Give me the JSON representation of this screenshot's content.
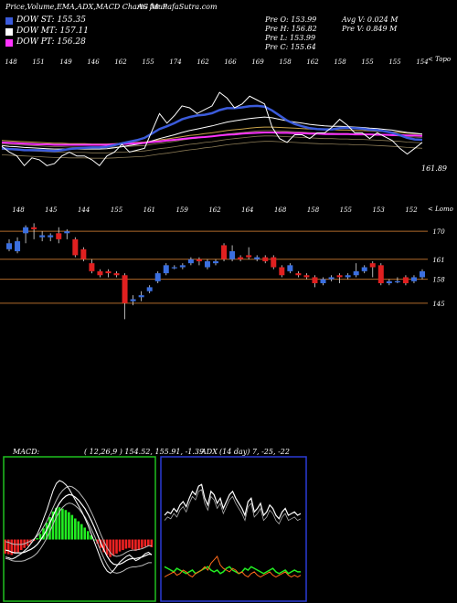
{
  "header": {
    "title": "Price,Volume,EMA,ADX,MACD Charts for P",
    "site": "AG MunafaSutra.com"
  },
  "legend": [
    {
      "label": "DOW ST: 155.35",
      "color": "#3b5bdb"
    },
    {
      "label": "DOW MT: 157.11",
      "color": "#ffffff"
    },
    {
      "label": "DOW PT: 156.28",
      "color": "#ff33ff"
    }
  ],
  "stats": {
    "prev_open": "Pre O: 153.99",
    "prev_high": "Pre H: 156.82",
    "prev_low": "Pre L: 153.99",
    "prev_close": "Pre C: 155.64",
    "avg_vol": "Avg V: 0.024 M",
    "prev_vol": "Pre V: 0.849 M"
  },
  "ema_panel": {
    "label_right": "< Topo",
    "last_price": "161.89",
    "top_labels": [
      "148",
      "151",
      "149",
      "146",
      "162",
      "155",
      "174",
      "162",
      "166",
      "169",
      "158",
      "162",
      "158",
      "155",
      "155",
      "154"
    ],
    "price_series": [
      173.0,
      171.5,
      170.5,
      168,
      170,
      169.5,
      168,
      168.5,
      170.5,
      171.5,
      170.5,
      170.5,
      169.5,
      168,
      170.5,
      171.5,
      173.5,
      171.5,
      172,
      172.5,
      177,
      181.5,
      179,
      181,
      183.5,
      183,
      181.5,
      182.5,
      183.5,
      187,
      185.5,
      183,
      184,
      186,
      185,
      184,
      178,
      175,
      174,
      176,
      176,
      175,
      176.5,
      176.5,
      178,
      180,
      178.5,
      176.5,
      176.5,
      175,
      176.5,
      175.5,
      174.5,
      172.5,
      171,
      172.5,
      174
    ],
    "ema_short": [
      172.5,
      172.3,
      172.2,
      172,
      172,
      172,
      171.9,
      171.8,
      172,
      172.3,
      172.5,
      172.6,
      172.7,
      172.7,
      172.9,
      173.3,
      173.8,
      174.2,
      174.6,
      175.2,
      176.3,
      177.5,
      178.2,
      179,
      180,
      180.6,
      181,
      181.2,
      181.6,
      182.4,
      182.9,
      182.9,
      183.1,
      183.4,
      183.5,
      183.3,
      182.3,
      181,
      179.7,
      178.8,
      178.2,
      177.7,
      177.5,
      177.4,
      177.4,
      177.7,
      177.8,
      177.7,
      177.6,
      177.3,
      177.2,
      176.9,
      176.5,
      175.9,
      175.2,
      174.8,
      174.7
    ],
    "ema_mid": [
      173.2,
      173.0,
      172.9,
      172.7,
      172.6,
      172.5,
      172.4,
      172.3,
      172.3,
      172.3,
      172.3,
      172.3,
      172.3,
      172.3,
      172.4,
      172.6,
      172.9,
      173.2,
      173.5,
      173.8,
      174.4,
      175.0,
      175.5,
      176.0,
      176.6,
      177.1,
      177.5,
      177.9,
      178.3,
      178.8,
      179.3,
      179.6,
      179.9,
      180.2,
      180.4,
      180.6,
      180.4,
      180.0,
      179.6,
      179.3,
      179.0,
      178.7,
      178.5,
      178.3,
      178.2,
      178.2,
      178.1,
      178.0,
      177.9,
      177.7,
      177.6,
      177.4,
      177.2,
      176.9,
      176.6,
      176.4,
      176.2
    ],
    "ema_long": [
      174.5,
      174.4,
      174.3,
      174.2,
      174.1,
      174.0,
      173.9,
      173.8,
      173.8,
      173.7,
      173.7,
      173.7,
      173.6,
      173.6,
      173.6,
      173.7,
      173.8,
      173.9,
      174.0,
      174.1,
      174.4,
      174.7,
      174.9,
      175.2,
      175.5,
      175.8,
      176.0,
      176.3,
      176.5,
      176.8,
      177.1,
      177.3,
      177.5,
      177.7,
      177.9,
      178.0,
      178.0,
      177.9,
      177.8,
      177.7,
      177.6,
      177.5,
      177.4,
      177.3,
      177.3,
      177.2,
      177.2,
      177.1,
      177.1,
      177.0,
      176.9,
      176.8,
      176.7,
      176.6,
      176.4,
      176.3,
      176.2
    ],
    "ema_pink": [
      174.0,
      173.9,
      173.8,
      173.7,
      173.6,
      173.5,
      173.5,
      173.4,
      173.4,
      173.4,
      173.4,
      173.4,
      173.4,
      173.4,
      173.4,
      173.5,
      173.6,
      173.7,
      173.8,
      173.9,
      174.1,
      174.3,
      174.5,
      174.7,
      174.9,
      175.1,
      175.3,
      175.4,
      175.6,
      175.8,
      176.0,
      176.1,
      176.3,
      176.4,
      176.5,
      176.6,
      176.6,
      176.5,
      176.5,
      176.4,
      176.4,
      176.3,
      176.3,
      176.2,
      176.2,
      176.2,
      176.2,
      176.1,
      176.1,
      176.1,
      176.0,
      176.0,
      175.9,
      175.9,
      175.8,
      175.8,
      175.7
    ],
    "y_range": [
      160,
      192
    ]
  },
  "candle_panel": {
    "label_right": "< Lomo",
    "top_labels": [
      "148",
      "145",
      "144",
      "155",
      "161",
      "159",
      "162",
      "164",
      "168",
      "158",
      "155",
      "153",
      "152"
    ],
    "right_labels": [
      "170",
      "161",
      "158",
      "145"
    ],
    "h_lines": [
      170,
      163,
      158,
      152
    ],
    "y_range": [
      141,
      173
    ],
    "candles": [
      {
        "o": 165.5,
        "c": 167.0,
        "h": 168.0,
        "l": 165.0
      },
      {
        "o": 165.0,
        "c": 167.5,
        "h": 168.5,
        "l": 164.5
      },
      {
        "o": 169.5,
        "c": 171.0,
        "h": 171.5,
        "l": 167.0
      },
      {
        "o": 171.0,
        "c": 170.5,
        "h": 172.0,
        "l": 168.0
      },
      {
        "o": 168.5,
        "c": 169.0,
        "h": 170.0,
        "l": 167.5
      },
      {
        "o": 168.5,
        "c": 169.0,
        "h": 169.5,
        "l": 167.5
      },
      {
        "o": 169.5,
        "c": 168.0,
        "h": 171.0,
        "l": 167.0
      },
      {
        "o": 169.5,
        "c": 170.0,
        "h": 170.5,
        "l": 168.0
      },
      {
        "o": 168.0,
        "c": 164.0,
        "h": 168.5,
        "l": 163.5
      },
      {
        "o": 165.5,
        "c": 163.0,
        "h": 166.0,
        "l": 162.5
      },
      {
        "o": 162.0,
        "c": 160.0,
        "h": 163.0,
        "l": 159.5
      },
      {
        "o": 160.0,
        "c": 159.0,
        "h": 160.5,
        "l": 158.5
      },
      {
        "o": 160.0,
        "c": 159.5,
        "h": 160.5,
        "l": 158.5
      },
      {
        "o": 159.5,
        "c": 159.0,
        "h": 160.0,
        "l": 158.5
      },
      {
        "o": 159.0,
        "c": 152.0,
        "h": 159.5,
        "l": 148.0
      },
      {
        "o": 152.5,
        "c": 153.0,
        "h": 154.0,
        "l": 151.5
      },
      {
        "o": 153.5,
        "c": 154.0,
        "h": 155.0,
        "l": 152.5
      },
      {
        "o": 155.0,
        "c": 156.0,
        "h": 156.5,
        "l": 154.5
      },
      {
        "o": 157.5,
        "c": 159.5,
        "h": 160.0,
        "l": 157.0
      },
      {
        "o": 159.5,
        "c": 161.5,
        "h": 162.0,
        "l": 159.0
      },
      {
        "o": 161.0,
        "c": 161.0,
        "h": 161.5,
        "l": 160.5
      },
      {
        "o": 161.0,
        "c": 161.5,
        "h": 162.0,
        "l": 160.5
      },
      {
        "o": 162.0,
        "c": 163.0,
        "h": 163.5,
        "l": 161.5
      },
      {
        "o": 163.0,
        "c": 162.5,
        "h": 163.5,
        "l": 161.5
      },
      {
        "o": 161.0,
        "c": 162.5,
        "h": 163.0,
        "l": 160.5
      },
      {
        "o": 162.0,
        "c": 162.5,
        "h": 163.0,
        "l": 161.5
      },
      {
        "o": 166.5,
        "c": 163.0,
        "h": 167.0,
        "l": 162.5
      },
      {
        "o": 163.0,
        "c": 165.0,
        "h": 166.5,
        "l": 162.5
      },
      {
        "o": 163.5,
        "c": 163.0,
        "h": 164.0,
        "l": 162.5
      },
      {
        "o": 164.0,
        "c": 163.5,
        "h": 166.0,
        "l": 163.0
      },
      {
        "o": 163.0,
        "c": 163.5,
        "h": 164.0,
        "l": 162.5
      },
      {
        "o": 163.5,
        "c": 162.5,
        "h": 164.0,
        "l": 162.0
      },
      {
        "o": 163.5,
        "c": 161.0,
        "h": 164.0,
        "l": 160.5
      },
      {
        "o": 161.0,
        "c": 159.0,
        "h": 161.5,
        "l": 158.5
      },
      {
        "o": 160.0,
        "c": 161.5,
        "h": 162.0,
        "l": 159.5
      },
      {
        "o": 159.5,
        "c": 159.0,
        "h": 160.0,
        "l": 158.5
      },
      {
        "o": 159.0,
        "c": 158.5,
        "h": 159.5,
        "l": 158.0
      },
      {
        "o": 158.5,
        "c": 157.0,
        "h": 159.0,
        "l": 156.0
      },
      {
        "o": 157.0,
        "c": 158.0,
        "h": 158.5,
        "l": 156.5
      },
      {
        "o": 158.0,
        "c": 158.5,
        "h": 159.0,
        "l": 157.5
      },
      {
        "o": 159.0,
        "c": 158.5,
        "h": 159.5,
        "l": 157.0
      },
      {
        "o": 158.5,
        "c": 159.0,
        "h": 159.5,
        "l": 158.0
      },
      {
        "o": 159.0,
        "c": 160.0,
        "h": 162.0,
        "l": 158.5
      },
      {
        "o": 160.0,
        "c": 161.0,
        "h": 161.5,
        "l": 159.5
      },
      {
        "o": 162.0,
        "c": 161.0,
        "h": 162.5,
        "l": 158.5
      },
      {
        "o": 161.5,
        "c": 157.0,
        "h": 162.0,
        "l": 156.5
      },
      {
        "o": 157.0,
        "c": 157.5,
        "h": 158.0,
        "l": 156.5
      },
      {
        "o": 157.5,
        "c": 157.5,
        "h": 158.5,
        "l": 157.0
      },
      {
        "o": 158.5,
        "c": 157.0,
        "h": 159.0,
        "l": 156.5
      },
      {
        "o": 157.5,
        "c": 158.5,
        "h": 159.0,
        "l": 157.0
      },
      {
        "o": 158.5,
        "c": 160.0,
        "h": 160.5,
        "l": 158.0
      }
    ]
  },
  "macd_panel": {
    "label": "MACD:",
    "values": "( 12,26,9 ) 154.52, 155.91, -1.39",
    "histogram": [
      -2.0,
      -2.1,
      -2.2,
      -2.0,
      -1.8,
      -1.5,
      -1.2,
      -0.9,
      -0.5,
      -0.2,
      0.2,
      0.8,
      1.6,
      2.4,
      3.2,
      4.0,
      4.5,
      4.6,
      4.4,
      4.2,
      3.9,
      3.5,
      3.0,
      2.6,
      2.2,
      1.7,
      1.2,
      0.6,
      0.0,
      -0.6,
      -1.2,
      -1.8,
      -2.2,
      -2.5,
      -2.3,
      -2.0,
      -1.7,
      -1.5,
      -1.3,
      -1.2,
      -1.4,
      -1.6,
      -1.5,
      -1.2,
      -1.0,
      -0.9,
      -1.1
    ],
    "macd_line": [
      -2.5,
      -2.6,
      -2.8,
      -2.6,
      -2.3,
      -2.0,
      -1.6,
      -1.2,
      -0.6,
      0.0,
      0.8,
      1.8,
      3.0,
      4.2,
      5.6,
      7.0,
      8.0,
      8.4,
      8.2,
      7.8,
      7.2,
      6.4,
      5.6,
      4.8,
      4.0,
      3.0,
      2.0,
      0.8,
      -0.4,
      -1.6,
      -2.8,
      -3.8,
      -4.5,
      -4.8,
      -4.4,
      -3.8,
      -3.2,
      -2.8,
      -2.4,
      -2.2,
      -2.6,
      -3.0,
      -2.8,
      -2.4,
      -2.0,
      -1.8,
      -2.2
    ],
    "signal_line": [
      -1.5,
      -1.6,
      -1.8,
      -1.9,
      -1.9,
      -1.9,
      -1.8,
      -1.6,
      -1.4,
      -1.1,
      -0.7,
      -0.1,
      0.6,
      1.4,
      2.4,
      3.4,
      4.4,
      5.2,
      5.8,
      6.2,
      6.4,
      6.3,
      6.0,
      5.6,
      5.0,
      4.4,
      3.6,
      2.7,
      1.7,
      0.6,
      -0.5,
      -1.5,
      -2.4,
      -3.1,
      -3.5,
      -3.6,
      -3.5,
      -3.3,
      -3.0,
      -2.8,
      -2.7,
      -2.7,
      -2.6,
      -2.5,
      -2.3,
      -2.1,
      -2.1
    ],
    "y_range": [
      -8,
      11
    ]
  },
  "adx_panel": {
    "label": "ADX",
    "values": "(14 day) 7, -25, -22",
    "adx_line": [
      48,
      50,
      49,
      52,
      50,
      54,
      56,
      53,
      58,
      62,
      60,
      65,
      66,
      58,
      54,
      62,
      60,
      55,
      58,
      52,
      56,
      60,
      62,
      58,
      55,
      52,
      48,
      56,
      58,
      50,
      52,
      55,
      48,
      50,
      54,
      52,
      48,
      46,
      50,
      52,
      48,
      49,
      50,
      48,
      49
    ],
    "plus_di": [
      18,
      17,
      16,
      15,
      17,
      16,
      15,
      14,
      15,
      16,
      14,
      15,
      16,
      17,
      18,
      16,
      15,
      16,
      14,
      15,
      17,
      18,
      16,
      15,
      14,
      15,
      17,
      16,
      18,
      17,
      16,
      15,
      14,
      15,
      16,
      17,
      15,
      14,
      15,
      16,
      14,
      15,
      16,
      15,
      15
    ],
    "minus_di": [
      12,
      13,
      14,
      15,
      13,
      14,
      16,
      15,
      13,
      12,
      14,
      15,
      16,
      18,
      16,
      20,
      22,
      24,
      19,
      17,
      16,
      15,
      17,
      16,
      14,
      15,
      13,
      12,
      14,
      15,
      13,
      12,
      13,
      14,
      15,
      13,
      12,
      13,
      14,
      15,
      13,
      12,
      13,
      12,
      13
    ],
    "y_range": [
      0,
      80
    ]
  }
}
